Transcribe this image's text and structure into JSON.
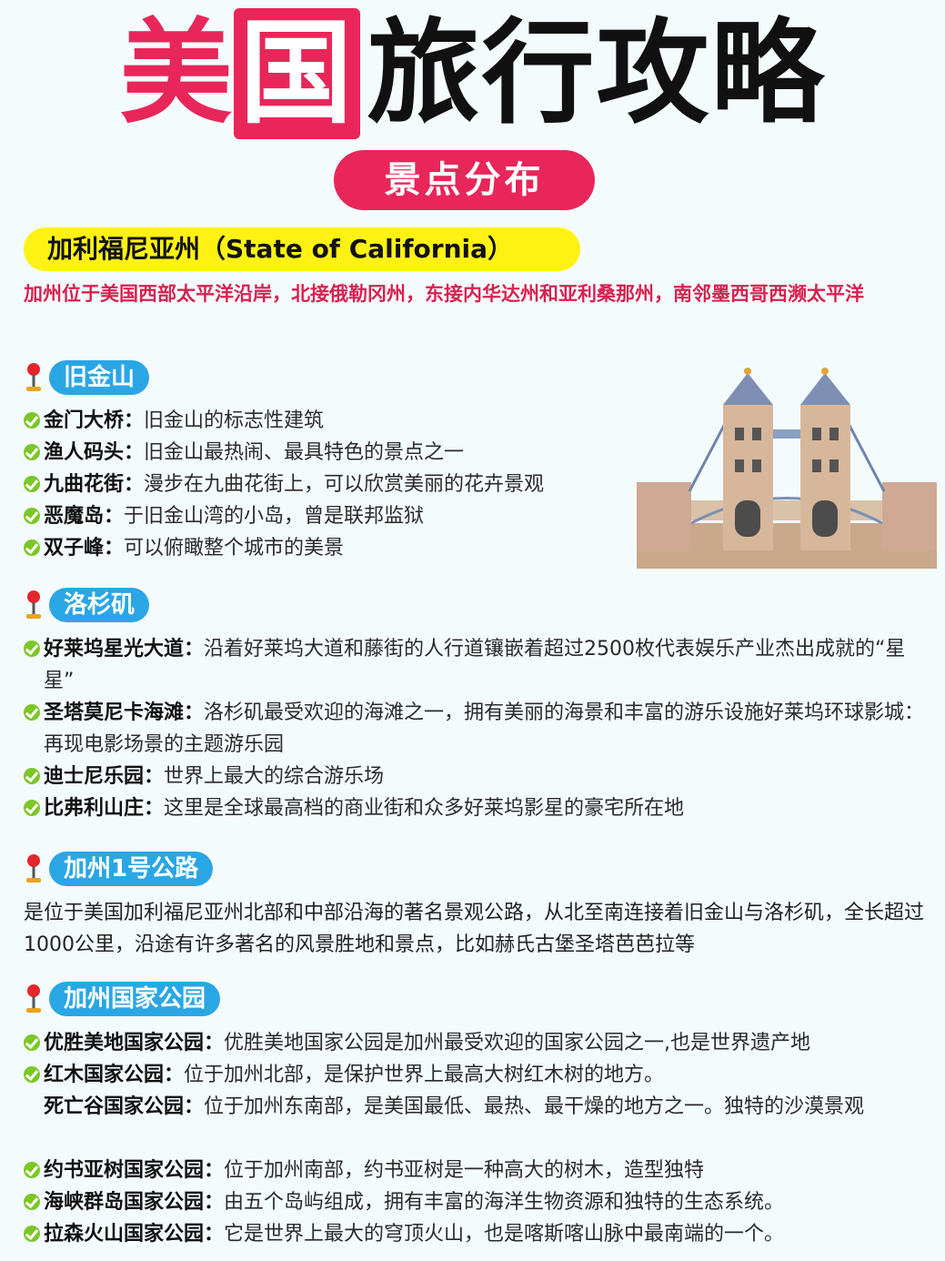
{
  "title": {
    "part1": "美",
    "part2": "国",
    "part3": "旅行攻略"
  },
  "subtitle": "景点分布",
  "state": {
    "heading": "加利福尼亚州（State of California）",
    "intro": "加州位于美国西部太平洋沿岸，北接俄勒冈州，东接内华达州和亚利桑那州，南邻墨西哥西濒太平洋"
  },
  "sections": {
    "sf": {
      "title": "旧金山",
      "items": [
        {
          "name": "金门大桥：",
          "desc": "旧金山的标志性建筑"
        },
        {
          "name": "渔人码头：",
          "desc": "旧金山最热闹、最具特色的景点之一"
        },
        {
          "name": "九曲花街：",
          "desc": "漫步在九曲花街上，可以欣赏美丽的花卉景观"
        },
        {
          "name": "恶魔岛：",
          "desc": "于旧金山湾的小岛，曾是联邦监狱"
        },
        {
          "name": "双子峰：",
          "desc": "可以俯瞰整个城市的美景"
        }
      ]
    },
    "la": {
      "title": "洛杉矶",
      "items": [
        {
          "name": "好莱坞星光大道：",
          "desc": "沿着好莱坞大道和藤街的人行道镶嵌着超过2500枚代表娱乐产业杰出成就的“星星”"
        },
        {
          "name": "圣塔莫尼卡海滩：",
          "desc": "洛杉矶最受欢迎的海滩之一，拥有美丽的海景和丰富的游乐设施好莱坞环球影城：再现电影场景的主题游乐园"
        },
        {
          "name": "迪士尼乐园：",
          "desc": "世界上最大的综合游乐场"
        },
        {
          "name": "比弗利山庄：",
          "desc": "这里是全球最高档的商业街和众多好莱坞影星的豪宅所在地"
        }
      ]
    },
    "hwy1": {
      "title": "加州1号公路",
      "text": "是位于美国加利福尼亚州北部和中部沿海的著名景观公路，从北至南连接着旧金山与洛杉矶，全长超过1000公里，沿途有许多著名的风景胜地和景点，比如赫氏古堡圣塔芭芭拉等"
    },
    "parks": {
      "title": "加州国家公园",
      "items": [
        {
          "name": "优胜美地国家公园：",
          "desc": "优胜美地国家公园是加州最受欢迎的国家公园之一,也是世界遗产地"
        },
        {
          "name": "红木国家公园：",
          "desc": "位于加州北部，是保护世界上最高大树红木树的地方。"
        },
        {
          "name": "死亡谷国家公园：",
          "desc": "位于加州东南部，是美国最低、最热、最干燥的地方之一。独特的沙漠景观"
        },
        {
          "name": "约书亚树国家公园：",
          "desc": "位于加州南部，约书亚树是一种高大的树木，造型独特"
        },
        {
          "name": "海峡群岛国家公园：",
          "desc": "由五个岛屿组成，拥有丰富的海洋生物资源和独特的生态系统。"
        },
        {
          "name": "拉森火山国家公园：",
          "desc": "它是世界上最大的穹顶火山，也是喀斯喀山脉中最南端的一个。"
        }
      ]
    }
  },
  "colors": {
    "accent_red": "#e8265a",
    "pill_blue": "#2aa6e5",
    "highlight_yellow": "#fff212",
    "check_green": "#7cc627"
  }
}
